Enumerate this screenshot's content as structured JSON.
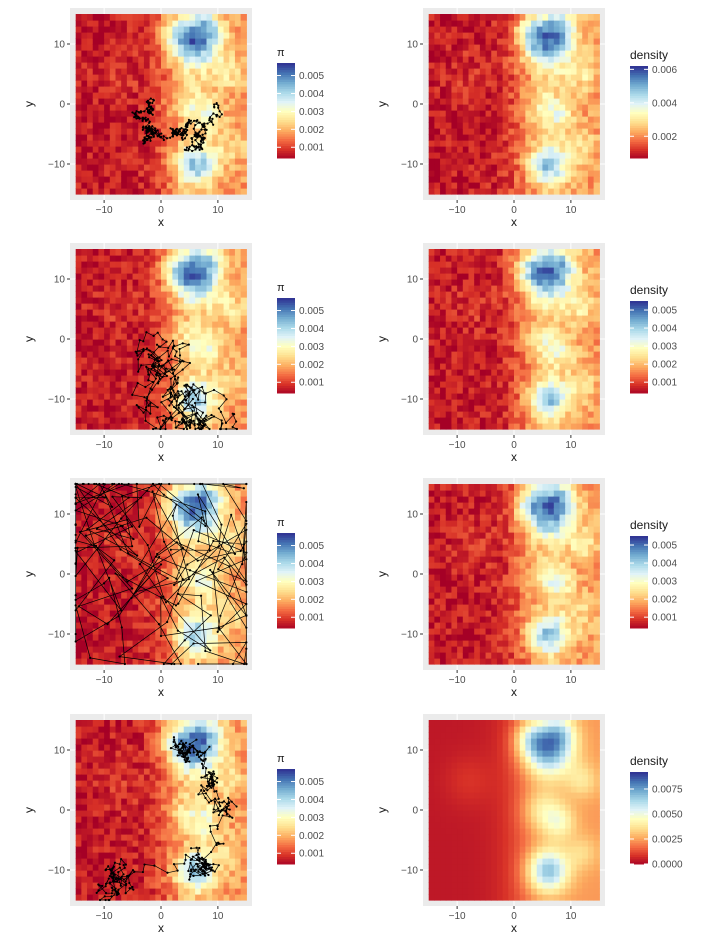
{
  "figure": {
    "description_free": true,
    "colors": {
      "panel_bg": "#ebebeb",
      "grid": "#ffffff",
      "path": "#000000",
      "palette_RdYlBu": [
        "#313695",
        "#4575b4",
        "#74add1",
        "#abd9e9",
        "#e0f3f8",
        "#ffffbf",
        "#fee090",
        "#fdae61",
        "#f46d43",
        "#d73027",
        "#a50026"
      ]
    }
  },
  "chart_data": [
    {
      "type": "heatmap",
      "panel": "r1c1",
      "xlabel": "x",
      "ylabel": "y",
      "xticks": [
        "-10",
        "0",
        "10"
      ],
      "yticks": [
        "10",
        "0",
        "-10"
      ],
      "xlim": [
        -16,
        16
      ],
      "ylim": [
        -16,
        16
      ],
      "legend_title": "π",
      "legend_labels": [
        "0.005",
        "0.004",
        "0.003",
        "0.002",
        "0.001"
      ],
      "legend_range": [
        0.0004,
        0.0057
      ],
      "overlay": {
        "n_steps": 300,
        "start": [
          -1,
          1
        ],
        "spread": 1.3,
        "seed": 11
      }
    },
    {
      "type": "heatmap",
      "panel": "r1c2",
      "xlabel": "x",
      "ylabel": "y",
      "xticks": [
        "-10",
        "0",
        "10"
      ],
      "yticks": [
        "10",
        "0",
        "-10"
      ],
      "xlim": [
        -16,
        16
      ],
      "ylim": [
        -16,
        16
      ],
      "legend_title": "density",
      "legend_labels": [
        "0.006",
        "0.004",
        "0.002"
      ],
      "legend_range": [
        0.0007,
        0.0062
      ],
      "overlay": null
    },
    {
      "type": "heatmap",
      "panel": "r2c1",
      "xlabel": "x",
      "ylabel": "y",
      "xticks": [
        "-10",
        "0",
        "10"
      ],
      "yticks": [
        "10",
        "0",
        "-10"
      ],
      "xlim": [
        -16,
        16
      ],
      "ylim": [
        -16,
        16
      ],
      "legend_title": "π",
      "legend_labels": [
        "0.005",
        "0.004",
        "0.003",
        "0.002",
        "0.001"
      ],
      "legend_range": [
        0.0004,
        0.0057
      ],
      "overlay": {
        "n_steps": 260,
        "start": [
          0,
          0
        ],
        "spread": 4,
        "seed": 23,
        "bias": [
          7,
          -11
        ]
      }
    },
    {
      "type": "heatmap",
      "panel": "r2c2",
      "xlabel": "x",
      "ylabel": "y",
      "xticks": [
        "-10",
        "0",
        "10"
      ],
      "yticks": [
        "10",
        "0",
        "-10"
      ],
      "xlim": [
        -16,
        16
      ],
      "ylim": [
        -16,
        16
      ],
      "legend_title": "density",
      "legend_labels": [
        "0.005",
        "0.004",
        "0.003",
        "0.002",
        "0.001"
      ],
      "legend_range": [
        0.0004,
        0.0055
      ],
      "overlay": null
    },
    {
      "type": "heatmap",
      "panel": "r3c1",
      "xlabel": "x",
      "ylabel": "y",
      "xticks": [
        "-10",
        "0",
        "10"
      ],
      "yticks": [
        "10",
        "0",
        "-10"
      ],
      "xlim": [
        -16,
        16
      ],
      "ylim": [
        -16,
        16
      ],
      "legend_title": "π",
      "legend_labels": [
        "0.005",
        "0.004",
        "0.003",
        "0.002",
        "0.001"
      ],
      "legend_range": [
        0.0004,
        0.0057
      ],
      "overlay": {
        "n_steps": 200,
        "start": [
          5,
          0
        ],
        "spread": 22,
        "seed": 37,
        "bias": [
          4,
          0
        ]
      }
    },
    {
      "type": "heatmap",
      "panel": "r3c2",
      "xlabel": "x",
      "ylabel": "y",
      "xticks": [
        "-10",
        "0",
        "10"
      ],
      "yticks": [
        "10",
        "0",
        "-10"
      ],
      "xlim": [
        -16,
        16
      ],
      "ylim": [
        -16,
        16
      ],
      "legend_title": "density",
      "legend_labels": [
        "0.005",
        "0.004",
        "0.003",
        "0.002",
        "0.001"
      ],
      "legend_range": [
        0.0004,
        0.0055
      ],
      "overlay": null
    },
    {
      "type": "heatmap",
      "panel": "r4c1",
      "xlabel": "x",
      "ylabel": "y",
      "xticks": [
        "-10",
        "0",
        "10"
      ],
      "yticks": [
        "10",
        "0",
        "-10"
      ],
      "xlim": [
        -16,
        16
      ],
      "ylim": [
        -16,
        16
      ],
      "legend_title": "π",
      "legend_labels": [
        "0.005",
        "0.004",
        "0.003",
        "0.002",
        "0.001"
      ],
      "legend_range": [
        0.0004,
        0.0057
      ],
      "overlay": {
        "n_steps": 320,
        "start": [
          -9,
          -11
        ],
        "spread": 3,
        "seed": 51,
        "multi": [
          [
            -9,
            -11
          ],
          [
            8,
            -9
          ],
          [
            10,
            3
          ],
          [
            4,
            11
          ]
        ]
      }
    },
    {
      "type": "heatmap",
      "panel": "r4c2",
      "xlabel": "x",
      "ylabel": "y",
      "xticks": [
        "-10",
        "0",
        "10"
      ],
      "yticks": [
        "10",
        "0",
        "-10"
      ],
      "xlim": [
        -16,
        16
      ],
      "ylim": [
        -16,
        16
      ],
      "legend_title": "density",
      "legend_labels": [
        "0.0075",
        "0.0050",
        "0.0025",
        "0.0000"
      ],
      "legend_range": [
        0.0,
        0.0092
      ],
      "overlay": null,
      "smooth": true
    }
  ]
}
